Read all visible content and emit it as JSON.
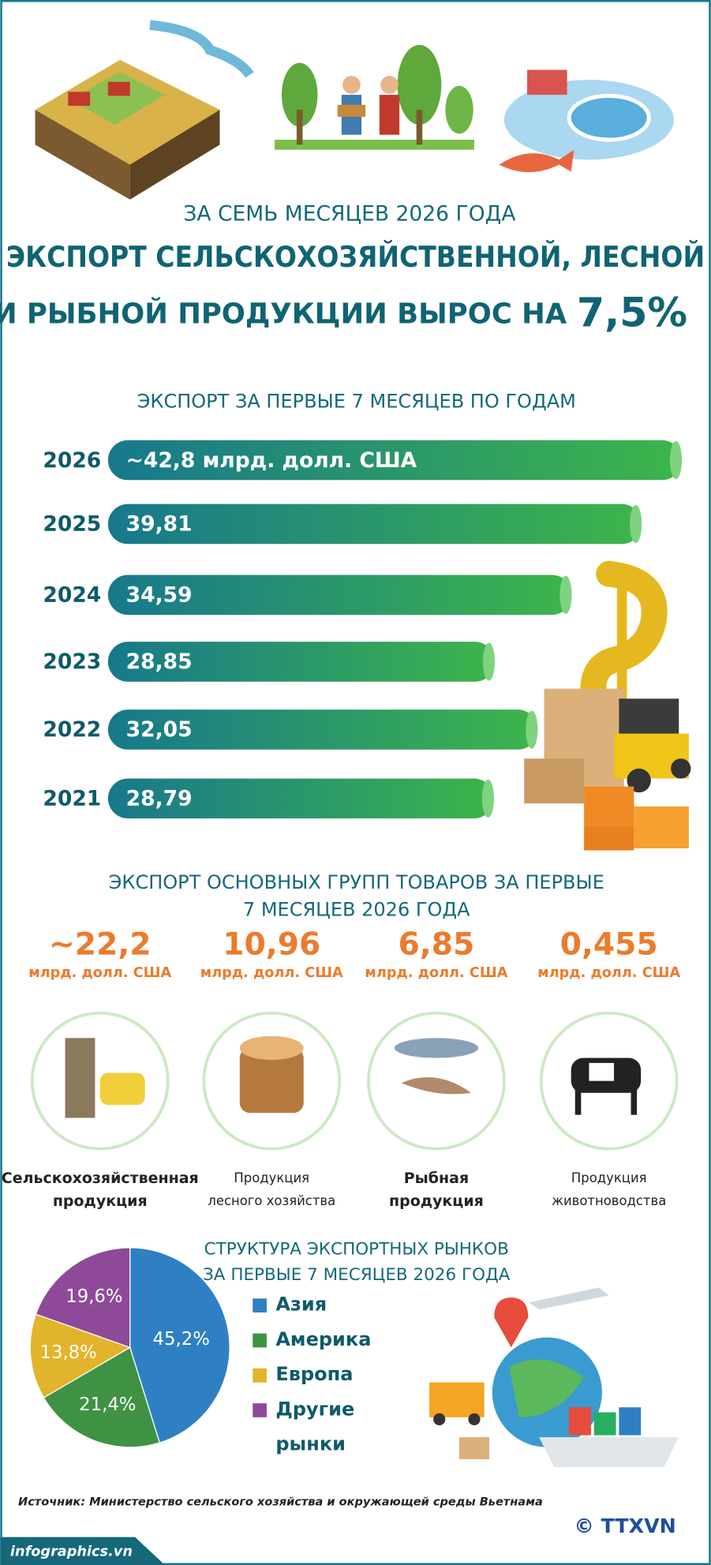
{
  "header": {
    "subtitle": "ЗА СЕМЬ МЕСЯЦЕВ 2026 ГОДА",
    "title": [
      "ЭКСПОРТ СЕЛЬСКОХОЗЯЙСТВЕННОЙ, ЛЕСНОЙ",
      "И РЫБНОЙ ПРОДУКЦИИ ВЫРОС НА"
    ],
    "highlight": "7,5%"
  },
  "chart_data": [
    {
      "type": "bar",
      "orientation": "horizontal",
      "title": "ЭКСПОРТ ЗА ПЕРВЫЕ 7 МЕСЯЦЕВ ПО ГОДАМ",
      "categories": [
        "2026",
        "2025",
        "2024",
        "2023",
        "2022",
        "2021"
      ],
      "values": [
        42.8,
        39.81,
        34.59,
        28.85,
        32.05,
        28.79
      ],
      "value_labels": [
        "~42,8 млрд. долл. США",
        "39,81",
        "34,59",
        "28,85",
        "32,05",
        "28,79"
      ],
      "colors": [
        "#17788c",
        "#3db54a"
      ]
    },
    {
      "type": "pie",
      "title": [
        "СТРУКТУРА ЭКСПОРТНЫХ РЫНКОВ",
        "ЗА ПЕРВЫЕ 7 МЕСЯЦЕВ 2026 ГОДА"
      ],
      "categories": [
        "Азия",
        "Америка",
        "Европа",
        "Другие рынки"
      ],
      "values": [
        45.2,
        21.4,
        13.8,
        19.6
      ],
      "value_labels": [
        "45,2%",
        "21,4%",
        "13,8%",
        "19,6%"
      ],
      "colors": [
        "#2f80c3",
        "#3f9244",
        "#e2b42c",
        "#8e4a98"
      ]
    }
  ],
  "groups": {
    "title": [
      "ЭКСПОРТ ОСНОВНЫХ ГРУПП ТОВАРОВ ЗА ПЕРВЫЕ",
      "7 МЕСЯЦЕВ 2026 ГОДА"
    ],
    "items": [
      {
        "value": "~22,2",
        "unit": "млрд. долл. США",
        "name": [
          "Сельскохозяйственная",
          "продукция"
        ]
      },
      {
        "value": "10,96",
        "unit": "млрд. долл. США",
        "name": [
          "Продукция",
          "лесного хозяйства"
        ]
      },
      {
        "value": "6,85",
        "unit": "млрд. долл. США",
        "name": [
          "Рыбная",
          "продукция"
        ]
      },
      {
        "value": "0,455",
        "unit": "млрд. долл. США",
        "name": [
          "Продукция",
          "животноводства"
        ]
      }
    ]
  },
  "source": "Источник: Министерство сельского хозяйства и окружающей среды Вьетнама",
  "footer": {
    "site": "infographics.vn",
    "agency": "© TTXVN"
  }
}
